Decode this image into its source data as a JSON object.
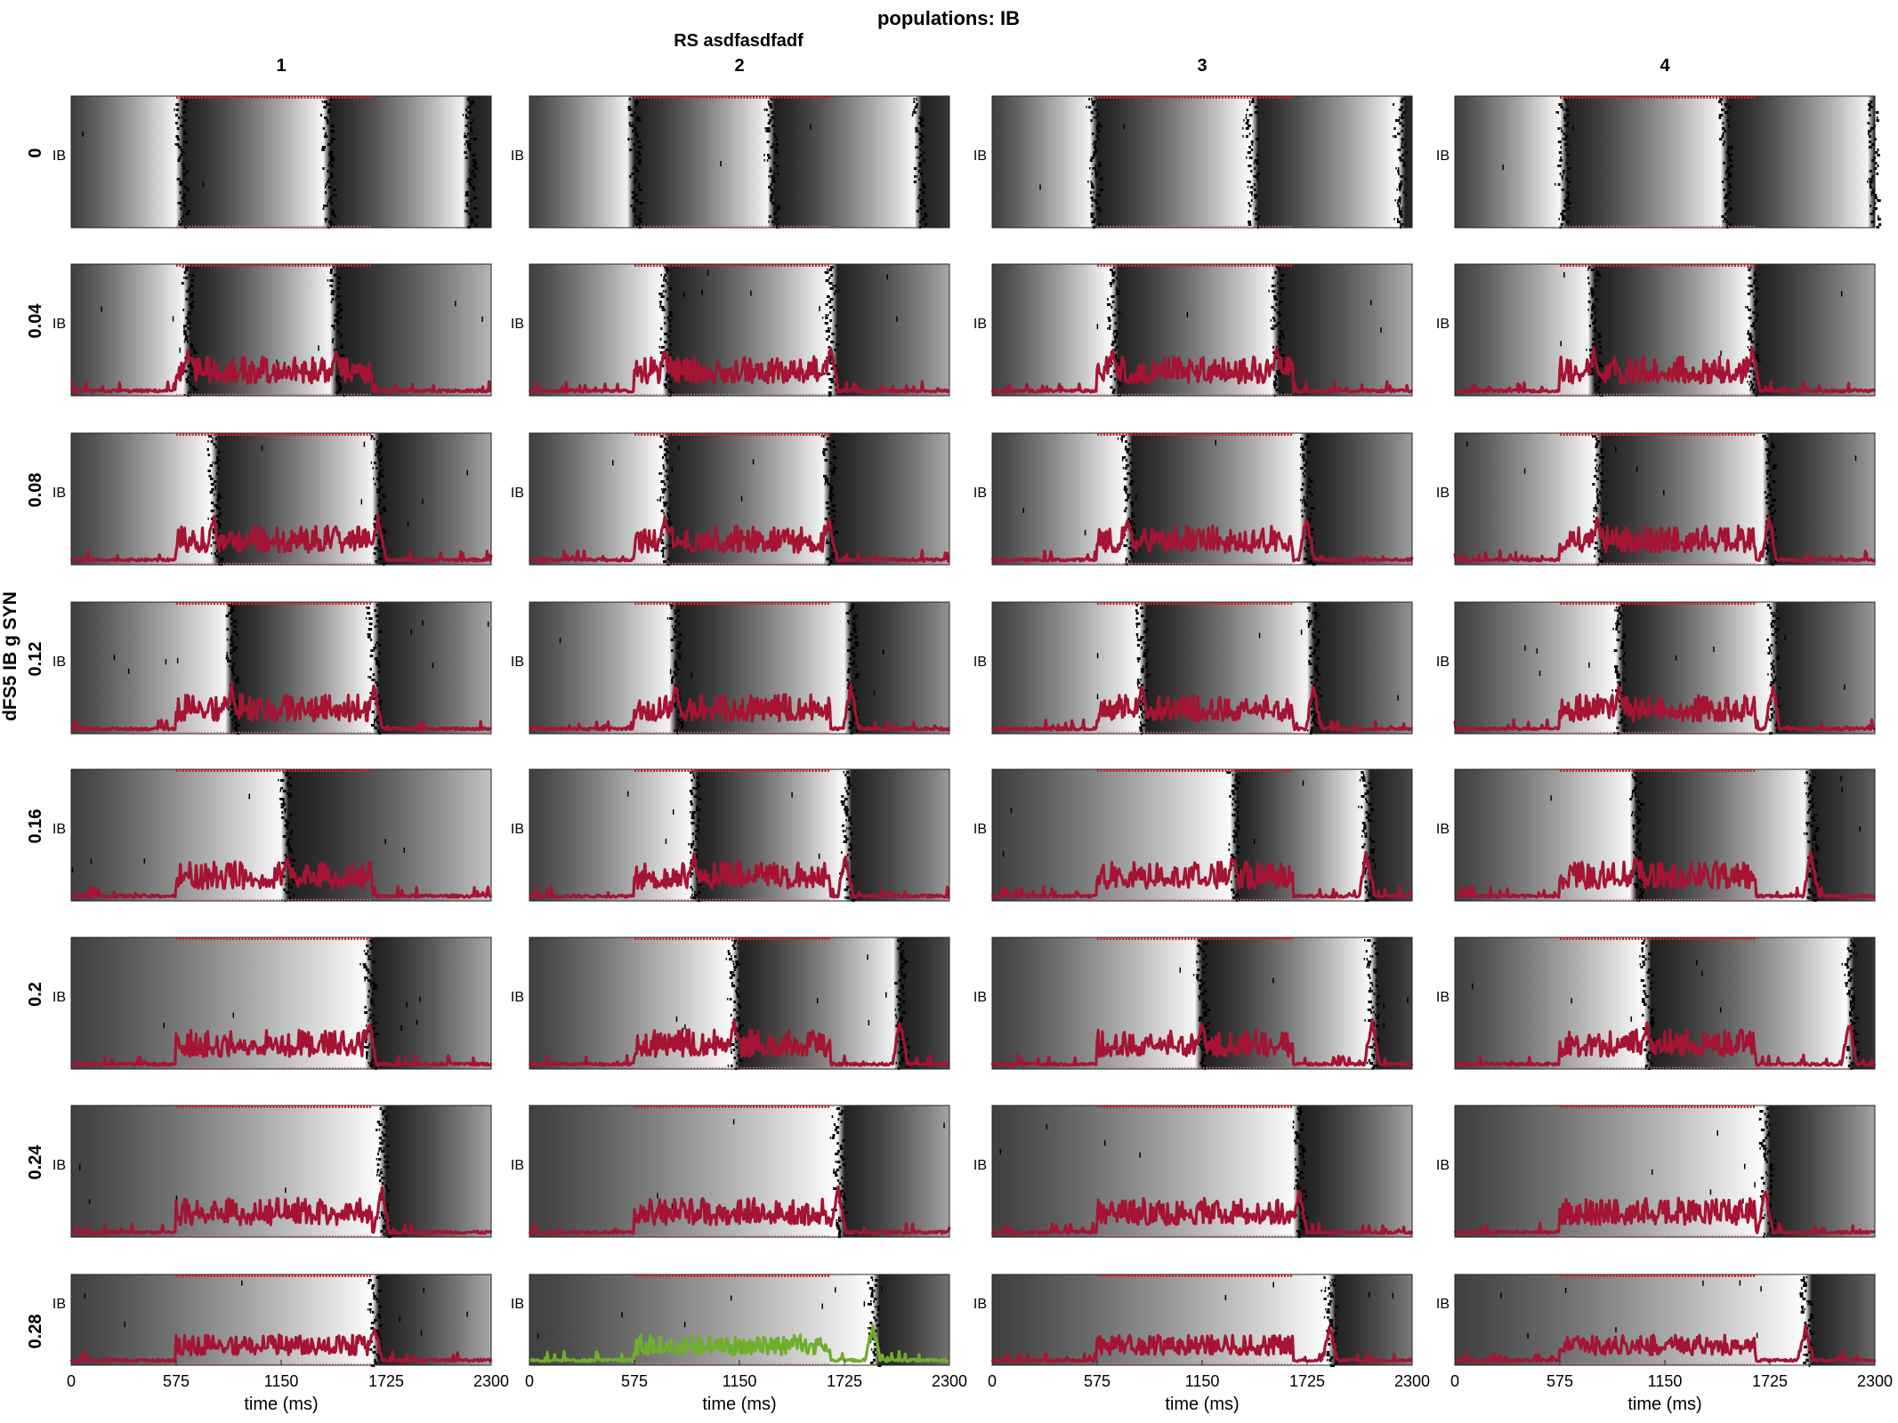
{
  "figure": {
    "title": "populations: IB",
    "column_header": "RS asdfasdfadf",
    "row_label": "dFS5 IB g SYN",
    "population_label": "IB",
    "xlabel": "time (ms)"
  },
  "chart_data": {
    "type": "raster_grid",
    "title": "populations: IB",
    "column_header": "RS asdfasdfadf",
    "ylabel": "dFS5 IB g SYN",
    "xlabel": "time (ms)",
    "column_values": [
      "1",
      "2",
      "3",
      "4"
    ],
    "row_values": [
      "0",
      "0.04",
      "0.08",
      "0.12",
      "0.16",
      "0.2",
      "0.24",
      "0.28"
    ],
    "xlim": [
      0,
      2300
    ],
    "x_ticks": [
      0,
      575,
      1150,
      1725,
      2300
    ],
    "x_tick_labels": [
      "0",
      "575",
      "1150",
      "1725",
      "2300"
    ],
    "stimulus_window_ms": [
      575,
      1650
    ],
    "trace_color": "#a51432",
    "highlight_trace_color": "#6fae2a",
    "highlight_panel": {
      "row": "0.28",
      "column": "2"
    },
    "stimulus_marker_color": "#e02020",
    "raster_color": "#000000",
    "background_gradient": "grayscale",
    "burst_times_ms": {
      "0": {
        "1": [
          600,
          1400,
          2180
        ],
        "2": [
          570,
          1330,
          2130
        ],
        "3": [
          560,
          1420,
          2230
        ],
        "4": [
          590,
          1480,
          2290
        ]
      },
      "0.04": {
        "1": [
          640,
          1450
        ],
        "2": [
          740,
          1650
        ],
        "3": [
          660,
          1560
        ],
        "4": [
          760,
          1630
        ]
      },
      "0.08": {
        "1": [
          780,
          1680
        ],
        "2": [
          740,
          1640
        ],
        "3": [
          740,
          1720
        ],
        "4": [
          780,
          1720
        ]
      },
      "0.12": {
        "1": [
          880,
          1660
        ],
        "2": [
          800,
          1760
        ],
        "3": [
          820,
          1760
        ],
        "4": [
          900,
          1740
        ]
      },
      "0.16": {
        "1": [
          1180
        ],
        "2": [
          900,
          1730
        ],
        "3": [
          1320,
          2050
        ],
        "4": [
          990,
          1950
        ]
      },
      "0.2": {
        "1": [
          1630
        ],
        "2": [
          1120,
          2030
        ],
        "3": [
          1150,
          2080
        ],
        "4": [
          1050,
          2160
        ]
      },
      "0.24": {
        "1": [
          1700
        ],
        "2": [
          1690
        ],
        "3": [
          1680
        ],
        "4": [
          1700
        ]
      },
      "0.28": {
        "1": [
          1660
        ],
        "2": [
          1880
        ],
        "3": [
          1850
        ],
        "4": [
          1920
        ]
      }
    }
  }
}
